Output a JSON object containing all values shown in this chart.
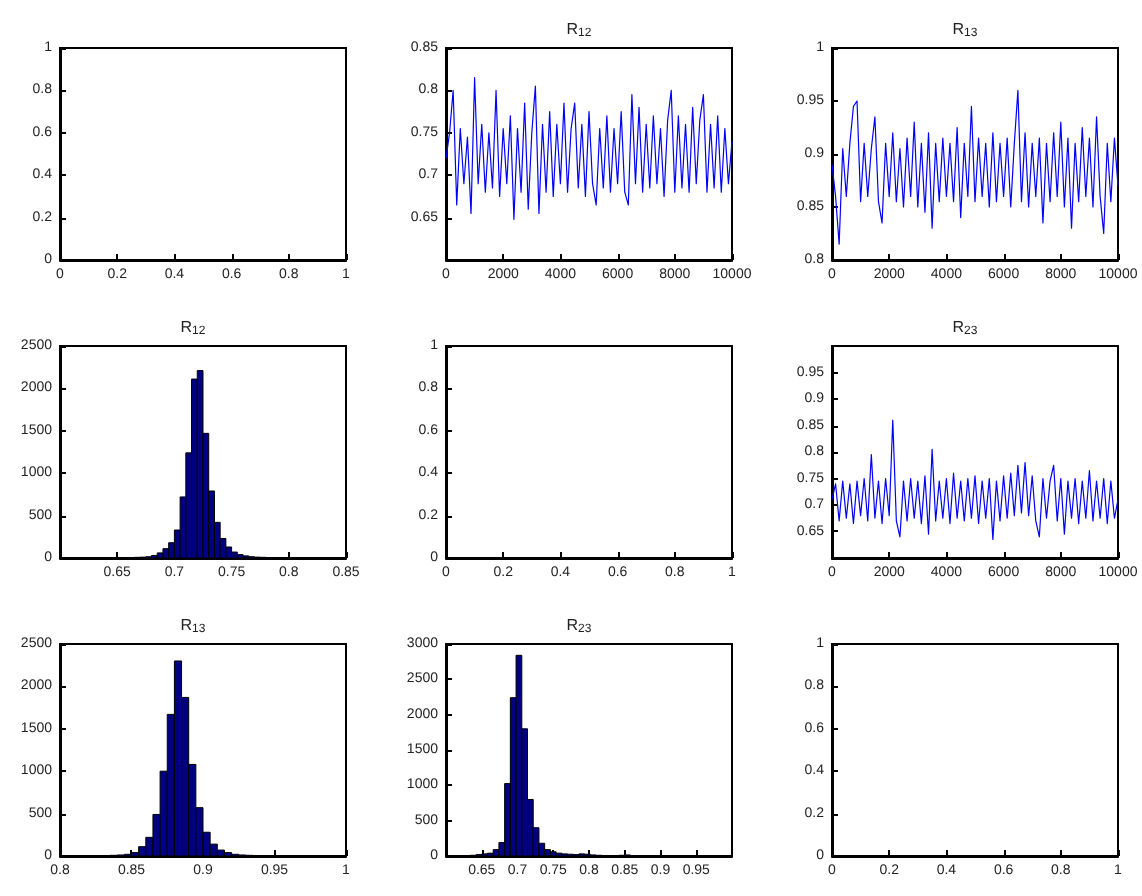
{
  "chart_data": [
    {
      "type": "line",
      "xlim": [
        0,
        1
      ],
      "ylim": [
        0,
        1
      ],
      "xticks": [
        0,
        0.2,
        0.4,
        0.6,
        0.8,
        1
      ],
      "yticks": [
        0,
        0.2,
        0.4,
        0.6,
        0.8,
        1
      ]
    },
    {
      "type": "line",
      "title": "R$_{12}$",
      "xlim": [
        0,
        10000
      ],
      "ylim": [
        0.6,
        0.85
      ],
      "xticks": [
        0,
        2000,
        4000,
        6000,
        8000,
        10000
      ],
      "yticks": [
        0.65,
        0.7,
        0.75,
        0.8,
        0.85
      ],
      "marker": "none",
      "x": [
        0,
        125,
        250,
        375,
        500,
        625,
        750,
        875,
        1000,
        1125,
        1250,
        1375,
        1500,
        1625,
        1750,
        1875,
        2000,
        2125,
        2250,
        2375,
        2500,
        2625,
        2750,
        2875,
        3000,
        3125,
        3250,
        3375,
        3500,
        3625,
        3750,
        3875,
        4000,
        4125,
        4250,
        4375,
        4500,
        4625,
        4750,
        4875,
        5000,
        5125,
        5250,
        5375,
        5500,
        5625,
        5750,
        5875,
        6000,
        6125,
        6250,
        6375,
        6500,
        6625,
        6750,
        6875,
        7000,
        7125,
        7250,
        7375,
        7500,
        7625,
        7750,
        7875,
        8000,
        8125,
        8250,
        8375,
        8500,
        8625,
        8750,
        8875,
        9000,
        9125,
        9250,
        9375,
        9500,
        9625,
        9750,
        9875,
        10000
      ],
      "series": [
        {
          "color": "#0000ff",
          "values": [
            0.72,
            0.75,
            0.8,
            0.665,
            0.755,
            0.69,
            0.745,
            0.655,
            0.815,
            0.69,
            0.76,
            0.68,
            0.75,
            0.685,
            0.8,
            0.675,
            0.755,
            0.69,
            0.77,
            0.648,
            0.755,
            0.68,
            0.785,
            0.66,
            0.75,
            0.805,
            0.655,
            0.76,
            0.68,
            0.775,
            0.675,
            0.76,
            0.69,
            0.785,
            0.68,
            0.755,
            0.785,
            0.685,
            0.76,
            0.675,
            0.775,
            0.69,
            0.665,
            0.755,
            0.685,
            0.77,
            0.68,
            0.755,
            0.69,
            0.775,
            0.68,
            0.665,
            0.795,
            0.69,
            0.78,
            0.68,
            0.76,
            0.685,
            0.77,
            0.69,
            0.755,
            0.675,
            0.765,
            0.8,
            0.68,
            0.77,
            0.685,
            0.76,
            0.68,
            0.78,
            0.69,
            0.765,
            0.795,
            0.68,
            0.76,
            0.685,
            0.77,
            0.68,
            0.755,
            0.69,
            0.74
          ]
        }
      ]
    },
    {
      "type": "line",
      "title": "R$_{13}$",
      "xlim": [
        0,
        10000
      ],
      "ylim": [
        0.8,
        1
      ],
      "xticks": [
        0,
        2000,
        4000,
        6000,
        8000,
        10000
      ],
      "yticks": [
        0.8,
        0.85,
        0.9,
        0.95,
        1
      ],
      "marker": "none",
      "x": [
        0,
        125,
        250,
        375,
        500,
        625,
        750,
        875,
        1000,
        1125,
        1250,
        1375,
        1500,
        1625,
        1750,
        1875,
        2000,
        2125,
        2250,
        2375,
        2500,
        2625,
        2750,
        2875,
        3000,
        3125,
        3250,
        3375,
        3500,
        3625,
        3750,
        3875,
        4000,
        4125,
        4250,
        4375,
        4500,
        4625,
        4750,
        4875,
        5000,
        5125,
        5250,
        5375,
        5500,
        5625,
        5750,
        5875,
        6000,
        6125,
        6250,
        6375,
        6500,
        6625,
        6750,
        6875,
        7000,
        7125,
        7250,
        7375,
        7500,
        7625,
        7750,
        7875,
        8000,
        8125,
        8250,
        8375,
        8500,
        8625,
        8750,
        8875,
        9000,
        9125,
        9250,
        9375,
        9500,
        9625,
        9750,
        9875,
        10000
      ],
      "series": [
        {
          "color": "#0000ff",
          "values": [
            0.89,
            0.86,
            0.815,
            0.905,
            0.86,
            0.91,
            0.945,
            0.95,
            0.855,
            0.91,
            0.86,
            0.905,
            0.935,
            0.855,
            0.835,
            0.91,
            0.86,
            0.92,
            0.855,
            0.905,
            0.85,
            0.915,
            0.86,
            0.93,
            0.85,
            0.91,
            0.845,
            0.92,
            0.83,
            0.91,
            0.855,
            0.915,
            0.86,
            0.91,
            0.855,
            0.925,
            0.84,
            0.91,
            0.86,
            0.945,
            0.855,
            0.915,
            0.86,
            0.91,
            0.85,
            0.92,
            0.855,
            0.91,
            0.86,
            0.915,
            0.85,
            0.91,
            0.96,
            0.855,
            0.92,
            0.85,
            0.91,
            0.86,
            0.915,
            0.835,
            0.91,
            0.855,
            0.92,
            0.86,
            0.93,
            0.85,
            0.915,
            0.83,
            0.91,
            0.855,
            0.925,
            0.86,
            0.915,
            0.85,
            0.935,
            0.86,
            0.825,
            0.91,
            0.855,
            0.915,
            0.87
          ]
        }
      ]
    },
    {
      "type": "histogram",
      "title": "R$_{12}$",
      "xlim": [
        0.6,
        0.85
      ],
      "ylim": [
        0,
        2500
      ],
      "xticks": [
        0.65,
        0.7,
        0.75,
        0.8,
        0.85
      ],
      "yticks": [
        0,
        500,
        1000,
        1500,
        2000,
        2500
      ],
      "color": "#000080",
      "bins": [
        0.64,
        0.645,
        0.65,
        0.655,
        0.66,
        0.665,
        0.67,
        0.675,
        0.68,
        0.685,
        0.69,
        0.695,
        0.7,
        0.705,
        0.71,
        0.715,
        0.72,
        0.725,
        0.73,
        0.735,
        0.74,
        0.745,
        0.75,
        0.755,
        0.76,
        0.765,
        0.77,
        0.775,
        0.78,
        0.785,
        0.79,
        0.795,
        0.8,
        0.805,
        0.81
      ],
      "values": [
        2,
        2,
        3,
        5,
        5,
        8,
        10,
        15,
        30,
        60,
        110,
        180,
        330,
        720,
        1240,
        2110,
        2210,
        1470,
        790,
        420,
        230,
        130,
        70,
        40,
        25,
        15,
        10,
        8,
        5,
        5,
        3,
        3,
        2,
        2
      ]
    },
    {
      "type": "line",
      "xlim": [
        0,
        1
      ],
      "ylim": [
        0,
        1
      ],
      "xticks": [
        0,
        0.2,
        0.4,
        0.6,
        0.8,
        1
      ],
      "yticks": [
        0,
        0.2,
        0.4,
        0.6,
        0.8,
        1
      ]
    },
    {
      "type": "line",
      "title": "R$_{23}$",
      "xlim": [
        0,
        10000
      ],
      "ylim": [
        0.6,
        1
      ],
      "xticks": [
        0,
        2000,
        4000,
        6000,
        8000,
        10000
      ],
      "yticks": [
        0.65,
        0.7,
        0.75,
        0.8,
        0.85,
        0.9,
        0.95
      ],
      "marker": "none",
      "x": [
        0,
        125,
        250,
        375,
        500,
        625,
        750,
        875,
        1000,
        1125,
        1250,
        1375,
        1500,
        1625,
        1750,
        1875,
        2000,
        2125,
        2250,
        2375,
        2500,
        2625,
        2750,
        2875,
        3000,
        3125,
        3250,
        3375,
        3500,
        3625,
        3750,
        3875,
        4000,
        4125,
        4250,
        4375,
        4500,
        4625,
        4750,
        4875,
        5000,
        5125,
        5250,
        5375,
        5500,
        5625,
        5750,
        5875,
        6000,
        6125,
        6250,
        6375,
        6500,
        6625,
        6750,
        6875,
        7000,
        7125,
        7250,
        7375,
        7500,
        7625,
        7750,
        7875,
        8000,
        8125,
        8250,
        8375,
        8500,
        8625,
        8750,
        8875,
        9000,
        9125,
        9250,
        9375,
        9500,
        9625,
        9750,
        9875,
        10000
      ],
      "series": [
        {
          "color": "#0000ff",
          "values": [
            0.71,
            0.74,
            0.67,
            0.745,
            0.675,
            0.74,
            0.665,
            0.745,
            0.68,
            0.75,
            0.67,
            0.795,
            0.675,
            0.745,
            0.665,
            0.75,
            0.68,
            0.86,
            0.67,
            0.64,
            0.745,
            0.67,
            0.75,
            0.675,
            0.745,
            0.665,
            0.755,
            0.645,
            0.805,
            0.67,
            0.745,
            0.675,
            0.75,
            0.665,
            0.76,
            0.675,
            0.745,
            0.67,
            0.75,
            0.675,
            0.755,
            0.665,
            0.745,
            0.675,
            0.75,
            0.635,
            0.745,
            0.67,
            0.755,
            0.675,
            0.76,
            0.68,
            0.775,
            0.685,
            0.78,
            0.68,
            0.755,
            0.67,
            0.64,
            0.75,
            0.675,
            0.745,
            0.775,
            0.67,
            0.75,
            0.645,
            0.745,
            0.675,
            0.75,
            0.665,
            0.745,
            0.675,
            0.765,
            0.67,
            0.745,
            0.675,
            0.75,
            0.665,
            0.745,
            0.675,
            0.71
          ]
        }
      ]
    },
    {
      "type": "histogram",
      "title": "R$_{13}$",
      "xlim": [
        0.8,
        1
      ],
      "ylim": [
        0,
        2500
      ],
      "xticks": [
        0.8,
        0.85,
        0.9,
        0.95,
        1
      ],
      "yticks": [
        0,
        500,
        1000,
        1500,
        2000,
        2500
      ],
      "color": "#000080",
      "bins": [
        0.815,
        0.82,
        0.825,
        0.83,
        0.835,
        0.84,
        0.845,
        0.85,
        0.855,
        0.86,
        0.865,
        0.87,
        0.875,
        0.88,
        0.885,
        0.89,
        0.895,
        0.9,
        0.905,
        0.91,
        0.915,
        0.92,
        0.925,
        0.93,
        0.935,
        0.94,
        0.945,
        0.95,
        0.955,
        0.96
      ],
      "values": [
        3,
        3,
        5,
        5,
        8,
        12,
        20,
        40,
        110,
        220,
        490,
        1000,
        1670,
        2300,
        1870,
        1080,
        570,
        280,
        140,
        70,
        40,
        20,
        12,
        8,
        6,
        5,
        4,
        3,
        2
      ]
    },
    {
      "type": "histogram",
      "title": "R$_{23}$",
      "xlim": [
        0.6,
        1
      ],
      "ylim": [
        0,
        3000
      ],
      "xticks": [
        0.65,
        0.7,
        0.75,
        0.8,
        0.85,
        0.9,
        0.95
      ],
      "yticks": [
        0,
        500,
        1000,
        1500,
        2000,
        2500,
        3000
      ],
      "color": "#000080",
      "bins": [
        0.626,
        0.634,
        0.642,
        0.65,
        0.658,
        0.666,
        0.674,
        0.682,
        0.69,
        0.698,
        0.706,
        0.714,
        0.722,
        0.73,
        0.738,
        0.746,
        0.754,
        0.762,
        0.77,
        0.778,
        0.786,
        0.794,
        0.802,
        0.81,
        0.818,
        0.826,
        0.834,
        0.842,
        0.85,
        0.858,
        0.866,
        0.874
      ],
      "values": [
        5,
        10,
        20,
        30,
        40,
        90,
        190,
        1025,
        2240,
        2840,
        1800,
        800,
        400,
        180,
        90,
        60,
        40,
        30,
        25,
        20,
        30,
        25,
        15,
        10,
        null,
        5,
        5,
        10,
        15,
        null,
        3
      ]
    },
    {
      "type": "line",
      "xlim": [
        0,
        1
      ],
      "ylim": [
        0,
        1
      ],
      "xticks": [
        0,
        0.2,
        0.4,
        0.6,
        0.8,
        1
      ],
      "yticks": [
        0,
        0.2,
        0.4,
        0.6,
        0.8,
        1
      ]
    }
  ]
}
